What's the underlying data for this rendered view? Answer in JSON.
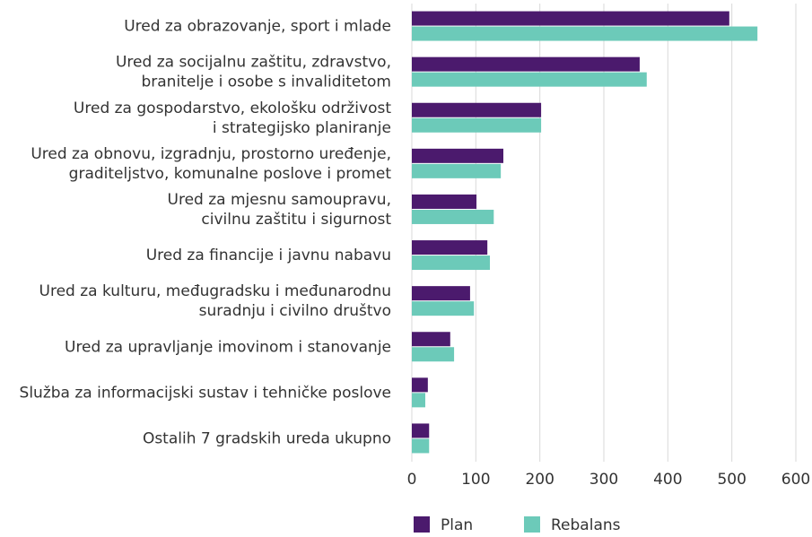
{
  "chart_data": {
    "type": "hbar",
    "categories": [
      "Ured za obrazovanje, sport i mlade",
      "Ured za socijalnu zaštitu, zdravstvo,\nbranitelje i osobe s invaliditetom",
      "Ured za gospodarstvo, ekološku održivost\ni strategijsko planiranje",
      "Ured za obnovu, izgradnju, prostorno uređenje,\ngraditeljstvo, komunalne poslove i promet",
      "Ured za mjesnu samoupravu,\ncivilnu zaštitu i sigurnost",
      "Ured za financije i javnu nabavu",
      "Ured za kulturu, međugradsku i međunarodnu\nsuradnju i civilno društvo",
      "Ured za upravljanje imovinom i stanovanje",
      "Služba za informacijski sustav i tehničke poslove",
      "Ostalih 7 gradskih ureda ukupno"
    ],
    "series": [
      {
        "name": "Plan",
        "color": "#4b1a6d",
        "values": [
          496,
          356,
          202,
          143,
          101,
          118,
          91,
          60,
          25,
          27
        ]
      },
      {
        "name": "Rebalans",
        "color": "#6ccab9",
        "values": [
          540,
          367,
          202,
          139,
          128,
          122,
          97,
          66,
          21,
          27
        ]
      }
    ],
    "xlim": [
      0,
      600
    ],
    "xticks": [
      0,
      100,
      200,
      300,
      400,
      500,
      600
    ],
    "grid": true,
    "legend": "bottom"
  }
}
